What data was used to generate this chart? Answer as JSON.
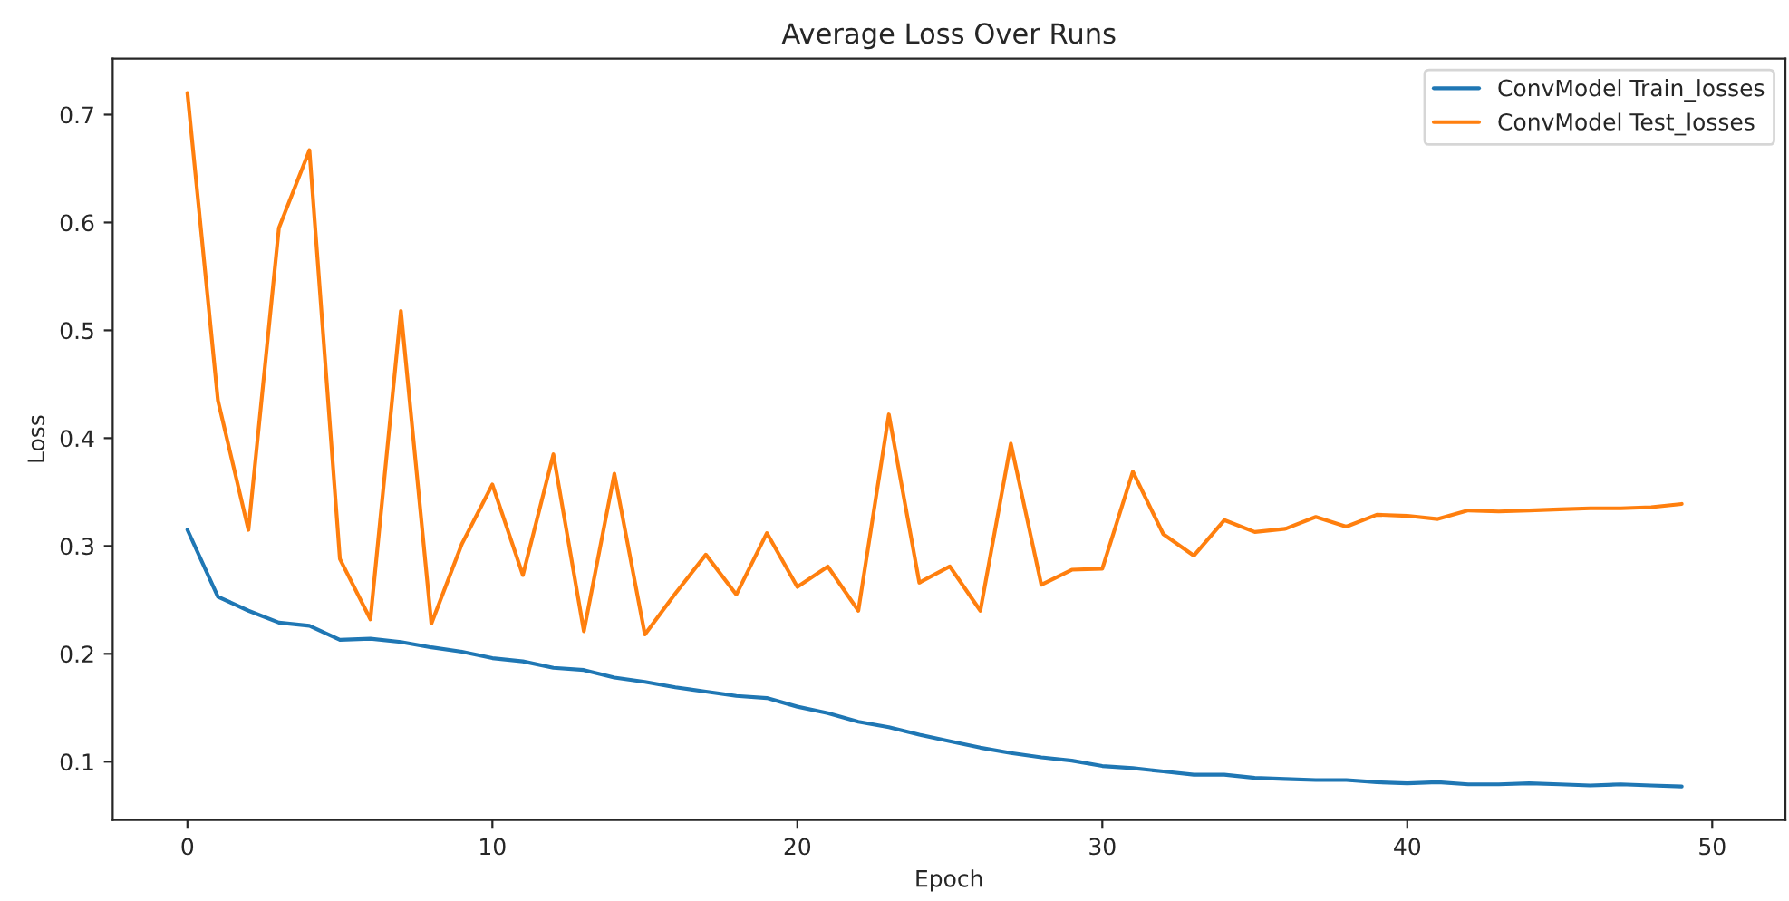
{
  "chart_data": {
    "type": "line",
    "title": "Average Loss Over Runs",
    "xlabel": "Epoch",
    "ylabel": "Loss",
    "x": [
      0,
      1,
      2,
      3,
      4,
      5,
      6,
      7,
      8,
      9,
      10,
      11,
      12,
      13,
      14,
      15,
      16,
      17,
      18,
      19,
      20,
      21,
      22,
      23,
      24,
      25,
      26,
      27,
      28,
      29,
      30,
      31,
      32,
      33,
      34,
      35,
      36,
      37,
      38,
      39,
      40,
      41,
      42,
      43,
      44,
      45,
      46,
      47,
      48,
      49
    ],
    "series": [
      {
        "name": "ConvModel Train_losses",
        "color": "#1f77b4",
        "values": [
          0.315,
          0.253,
          0.24,
          0.229,
          0.226,
          0.213,
          0.214,
          0.211,
          0.206,
          0.202,
          0.196,
          0.193,
          0.187,
          0.185,
          0.178,
          0.174,
          0.169,
          0.165,
          0.161,
          0.159,
          0.151,
          0.145,
          0.137,
          0.132,
          0.125,
          0.119,
          0.113,
          0.108,
          0.104,
          0.101,
          0.096,
          0.094,
          0.091,
          0.088,
          0.088,
          0.085,
          0.084,
          0.083,
          0.083,
          0.081,
          0.08,
          0.081,
          0.079,
          0.079,
          0.08,
          0.079,
          0.078,
          0.079,
          0.078,
          0.077
        ]
      },
      {
        "name": "ConvModel Test_losses",
        "color": "#ff7f0e",
        "values": [
          0.72,
          0.435,
          0.315,
          0.595,
          0.667,
          0.288,
          0.232,
          0.518,
          0.228,
          0.302,
          0.357,
          0.273,
          0.385,
          0.221,
          0.367,
          0.218,
          0.256,
          0.292,
          0.255,
          0.312,
          0.262,
          0.281,
          0.24,
          0.422,
          0.266,
          0.281,
          0.24,
          0.395,
          0.264,
          0.278,
          0.279,
          0.369,
          0.311,
          0.291,
          0.324,
          0.313,
          0.316,
          0.327,
          0.318,
          0.329,
          0.328,
          0.325,
          0.333,
          0.332,
          0.333,
          0.334,
          0.335,
          0.335,
          0.336,
          0.339
        ]
      }
    ],
    "xlim": [
      -2.45,
      52.4
    ],
    "ylim": [
      0.046,
      0.752
    ],
    "xticks": [
      0,
      10,
      20,
      30,
      40,
      50
    ],
    "yticks": [
      0.1,
      0.2,
      0.3,
      0.4,
      0.5,
      0.6,
      0.7
    ],
    "grid": false,
    "legend": "top right",
    "marker": "none",
    "line_style": "solid"
  }
}
